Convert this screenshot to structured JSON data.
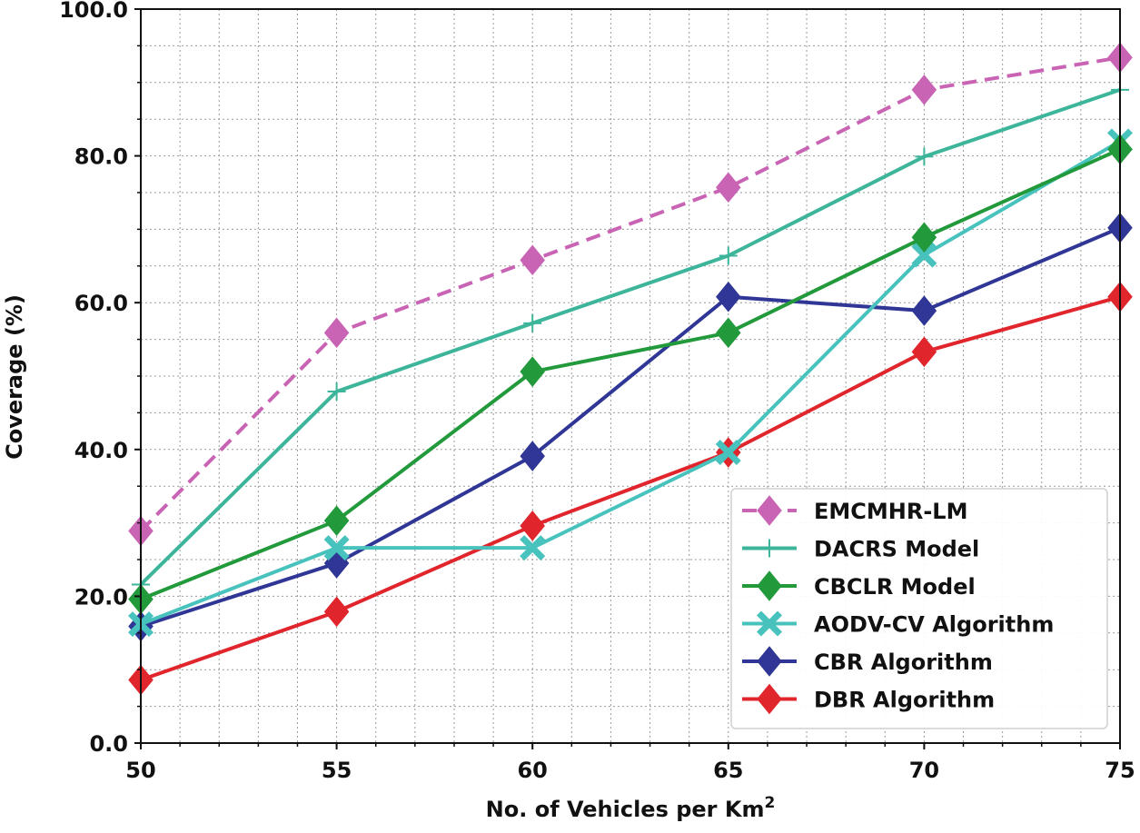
{
  "chart_data": {
    "type": "line",
    "title": "",
    "xlabel": "No. of Vehicles per Km",
    "xlabel_superscript": "2",
    "ylabel": "Coverage (%)",
    "x": [
      50,
      55,
      60,
      65,
      70,
      75
    ],
    "xlim": [
      50,
      75
    ],
    "ylim": [
      0,
      100
    ],
    "x_ticks": [
      "50",
      "55",
      "60",
      "65",
      "70",
      "75"
    ],
    "y_ticks": [
      "0.0",
      "20.0",
      "40.0",
      "60.0",
      "80.0",
      "100.0"
    ],
    "grid": true,
    "legend_position": "lower-right",
    "series": [
      {
        "name": "EMCMHR-LM",
        "color": "#c964b4",
        "marker": "diamond",
        "dashed": true,
        "values": [
          28.9,
          55.9,
          65.8,
          75.7,
          89.0,
          93.4
        ]
      },
      {
        "name": "DACRS Model",
        "color": "#3db59a",
        "marker": "plus",
        "dashed": false,
        "values": [
          21.6,
          47.9,
          57.2,
          66.4,
          79.9,
          89.0
        ]
      },
      {
        "name": "CBCLR Model",
        "color": "#229a3c",
        "marker": "diamond",
        "dashed": false,
        "values": [
          19.6,
          30.3,
          50.6,
          55.9,
          68.9,
          80.9
        ]
      },
      {
        "name": "AODV-CV Algorithm",
        "color": "#47c2bd",
        "marker": "x",
        "dashed": false,
        "values": [
          16.2,
          26.6,
          26.6,
          39.6,
          66.5,
          82.0
        ]
      },
      {
        "name": "CBR Algorithm",
        "color": "#2f3696",
        "marker": "diamond",
        "dashed": false,
        "values": [
          15.9,
          24.5,
          39.1,
          60.8,
          58.9,
          70.2
        ]
      },
      {
        "name": "DBR Algorithm",
        "color": "#e0262c",
        "marker": "diamond",
        "dashed": false,
        "values": [
          8.6,
          17.9,
          29.6,
          39.6,
          53.3,
          60.8
        ]
      }
    ]
  }
}
